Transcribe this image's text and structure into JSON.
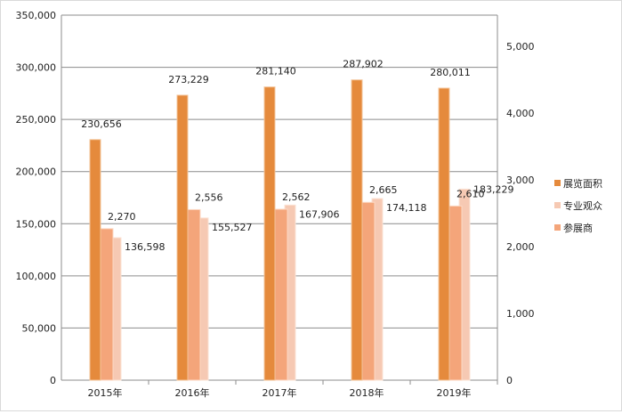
{
  "chart_data": {
    "type": "bar",
    "categories": [
      "2015年",
      "2016年",
      "2017年",
      "2018年",
      "2019年"
    ],
    "series": [
      {
        "name": "展览面积",
        "axis": "left",
        "color": "#E58A3C",
        "values": [
          230656,
          273229,
          281140,
          287902,
          280011
        ],
        "labels": [
          "230,656",
          "273,229",
          "281,140",
          "287,902",
          "280,011"
        ]
      },
      {
        "name": "专业观众",
        "axis": "left",
        "color": "#F6C9B3",
        "values": [
          136598,
          155527,
          167906,
          174118,
          183229
        ],
        "labels": [
          "136,598",
          "155,527",
          "167,906",
          "174,118",
          "183,229"
        ]
      },
      {
        "name": "参展商",
        "axis": "right",
        "color": "#F4A57A",
        "values": [
          2270,
          2556,
          2562,
          2665,
          2610
        ],
        "labels": [
          "2,270",
          "2,556",
          "2,562",
          "2,665",
          "2,610"
        ]
      }
    ],
    "left_axis": {
      "ylim": [
        0,
        350000
      ],
      "ticks": [
        "0",
        "50,000",
        "100,000",
        "150,000",
        "200,000",
        "250,000",
        "300,000",
        "350,000"
      ]
    },
    "right_axis": {
      "ylim": [
        0,
        5470
      ],
      "ticks": [
        "0",
        "1,000",
        "2,000",
        "3,000",
        "4,000",
        "5,000"
      ]
    },
    "grid": true,
    "legend": "right"
  }
}
